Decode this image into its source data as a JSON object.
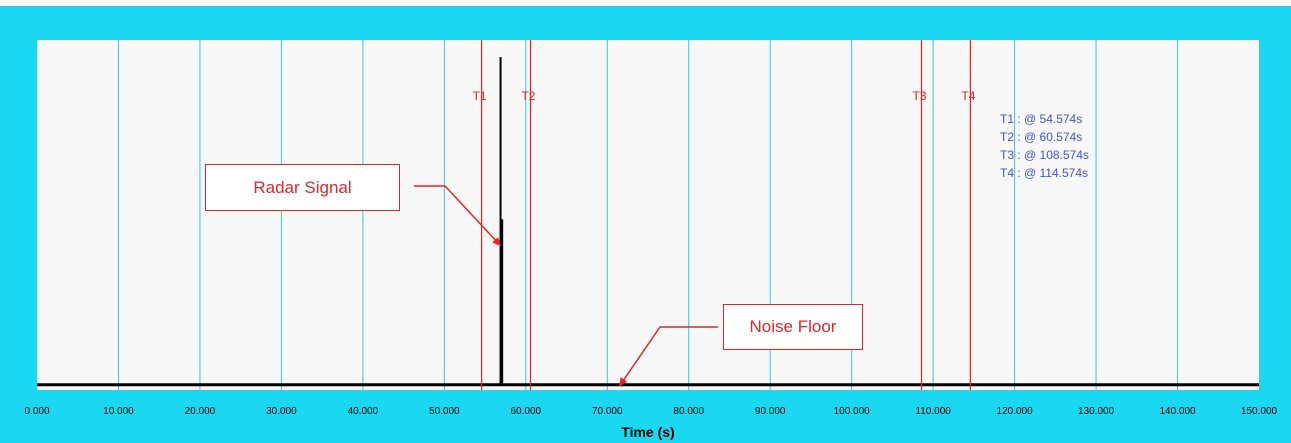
{
  "chart_data": {
    "type": "line",
    "title": "",
    "xlabel": "Time (s)",
    "ylabel": "",
    "xlim": [
      0,
      150
    ],
    "ylim": [
      0,
      1
    ],
    "grid": true,
    "x_ticks": [
      "0.000",
      "10.000",
      "20.000",
      "30.000",
      "40.000",
      "50.000",
      "60.000",
      "70.000",
      "80.000",
      "90.000",
      "100.000",
      "110.000",
      "120.000",
      "130.000",
      "140.000",
      "150.000"
    ],
    "series": [
      {
        "x": [
          0,
          56.8,
          56.9,
          57.0,
          57.1,
          57.2,
          150
        ],
        "y": [
          0.01,
          0.01,
          1.0,
          0.01,
          0.51,
          0.01,
          0.01
        ]
      }
    ],
    "cursors": [
      {
        "name": "T1",
        "x": 54.574
      },
      {
        "name": "T2",
        "x": 60.574
      },
      {
        "name": "T3",
        "x": 108.574
      },
      {
        "name": "T4",
        "x": 114.574
      }
    ],
    "cursor_legend": [
      "T1 : @ 54.574s",
      "T2 : @ 60.574s",
      "T3 : @ 108.574s",
      "T4 : @ 114.574s"
    ],
    "annotations": [
      {
        "text": "Radar Signal",
        "target_x": 56.9,
        "target_y": 0.43
      },
      {
        "text": "Noise Floor",
        "target_x": 71.5,
        "target_y": 0.0
      }
    ]
  },
  "colors": {
    "frame": "#1ad7f2",
    "plot_background": "#f7f7f7",
    "grid": "#3cc2e3",
    "cursor": "#e8201f",
    "signal": "#000000",
    "legend_text": "#3c55d8",
    "annotation": "#e0262b"
  }
}
